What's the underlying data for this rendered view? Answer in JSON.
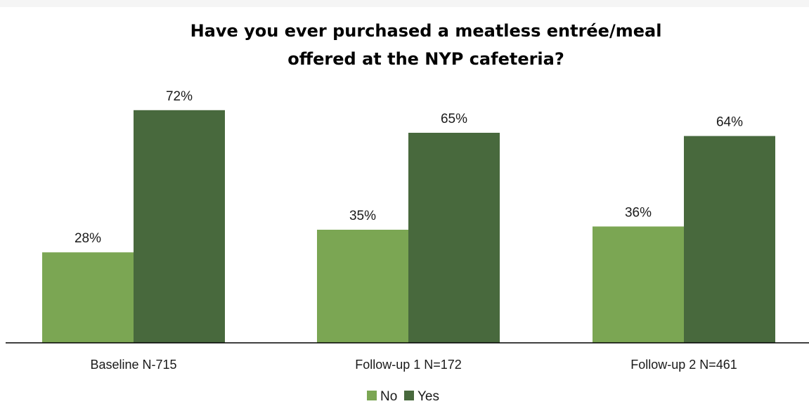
{
  "chart_data": {
    "type": "bar",
    "title": "Have you ever purchased a meatless entrée/meal",
    "subtitle": "offered at the NYP cafeteria?",
    "xlabel": "",
    "ylabel": "",
    "categories": [
      "Baseline N-715",
      "Follow-up 1 N=172",
      "Follow-up 2 N=461"
    ],
    "series": [
      {
        "name": "No",
        "values": [
          28,
          35,
          36
        ],
        "labels": [
          "28%",
          "35%",
          "36%"
        ],
        "color": "#7ba653"
      },
      {
        "name": "Yes",
        "values": [
          72,
          65,
          64
        ],
        "labels": [
          "72%",
          "65%",
          "64%"
        ],
        "color": "#48693d"
      }
    ],
    "ylim": [
      0,
      80
    ],
    "grid": false,
    "legend": "bottom"
  }
}
